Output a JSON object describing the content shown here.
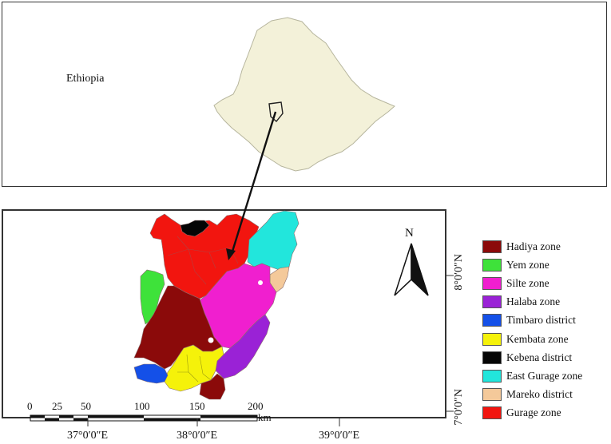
{
  "inset": {
    "country_label": "Ethiopia"
  },
  "north_arrow": {
    "label": "N"
  },
  "axes": {
    "longitude_labels": [
      "37°0′0″E",
      "38°0′0″E",
      "39°0′0″E"
    ],
    "latitude_labels": [
      "8°0′0″N",
      "7°0′0″N"
    ]
  },
  "scale_bar": {
    "ticks": [
      "0",
      "25",
      "50",
      "100",
      "150",
      "200"
    ],
    "unit": "km"
  },
  "legend": [
    {
      "label": "Hadiya zone",
      "color": "#8b0a0a"
    },
    {
      "label": "Yem zone",
      "color": "#3ee23a"
    },
    {
      "label": "Silte zone",
      "color": "#f01fcf"
    },
    {
      "label": "Halaba zone",
      "color": "#9a22d6"
    },
    {
      "label": "Timbaro district",
      "color": "#1450e8"
    },
    {
      "label": "Kembata zone",
      "color": "#f5f20a"
    },
    {
      "label": "Kebena district",
      "color": "#050505"
    },
    {
      "label": "East Gurage zone",
      "color": "#22e6dc"
    },
    {
      "label": "Mareko district",
      "color": "#f4c99a"
    },
    {
      "label": "Gurage zone",
      "color": "#f2150f"
    }
  ],
  "colors": {
    "ethiopia_fill": "#f3f1d9",
    "ethiopia_stroke": "#b6b59d",
    "arrow": "#111111"
  }
}
